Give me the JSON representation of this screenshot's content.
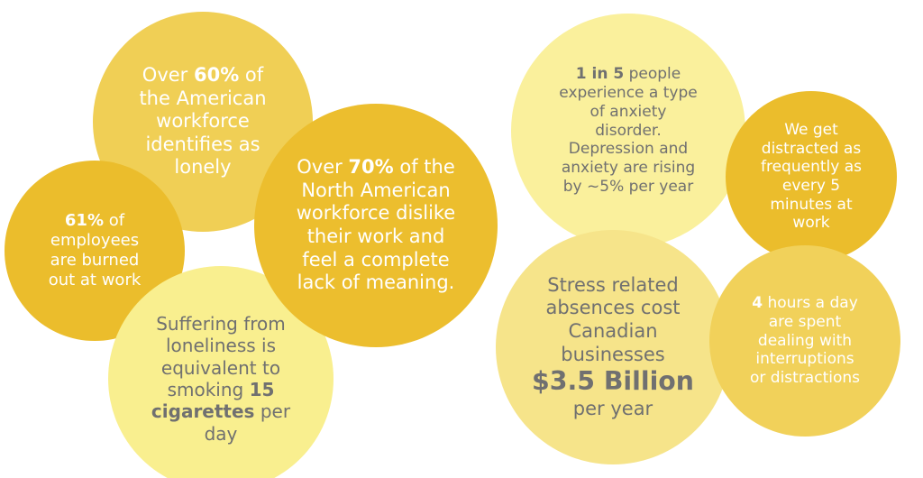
{
  "bubbles": [
    {
      "lines": [
        [
          "Over ",
          {
            "bold": "60%"
          },
          " of"
        ],
        [
          "the American"
        ],
        [
          "workforce"
        ],
        [
          "identifies as"
        ],
        [
          "lonely"
        ]
      ]
    },
    {
      "lines": [
        [
          {
            "bold": "61%"
          },
          " of"
        ],
        [
          "employees"
        ],
        [
          "are burned"
        ],
        [
          "out at work"
        ]
      ]
    },
    {
      "lines": [
        [
          "Suffering from"
        ],
        [
          "loneliness is"
        ],
        [
          "equivalent to"
        ],
        [
          "smoking ",
          {
            "bold": "15"
          }
        ],
        [
          {
            "bold": "cigarettes"
          },
          " per"
        ],
        [
          "day"
        ]
      ]
    },
    {
      "lines": [
        [
          "Over ",
          {
            "bold": "70%"
          },
          " of the"
        ],
        [
          "North American"
        ],
        [
          "workforce dislike"
        ],
        [
          "their work and"
        ],
        [
          "feel a complete"
        ],
        [
          "lack of meaning."
        ]
      ]
    },
    {
      "lines": [
        [
          {
            "bold": "1 in 5"
          },
          " people"
        ],
        [
          "experience a type"
        ],
        [
          "of anxiety"
        ],
        [
          "disorder."
        ],
        [
          "Depression and"
        ],
        [
          "anxiety are rising"
        ],
        [
          "by ~5% per year"
        ]
      ]
    },
    {
      "lines": [
        [
          "We get"
        ],
        [
          "distracted as"
        ],
        [
          "frequently as"
        ],
        [
          "every 5"
        ],
        [
          "minutes at"
        ],
        [
          "work"
        ]
      ]
    },
    {
      "lines": [
        [
          "Stress related"
        ],
        [
          "absences cost"
        ],
        [
          "Canadian"
        ],
        [
          "businesses"
        ],
        [
          {
            "big": "$3.5 Billion"
          }
        ],
        [
          "per year"
        ]
      ]
    },
    {
      "lines": [
        [
          {
            "bold": "4"
          },
          " hours a day"
        ],
        [
          "are spent"
        ],
        [
          "dealing with"
        ],
        [
          "interruptions"
        ],
        [
          "or distractions"
        ]
      ]
    }
  ]
}
